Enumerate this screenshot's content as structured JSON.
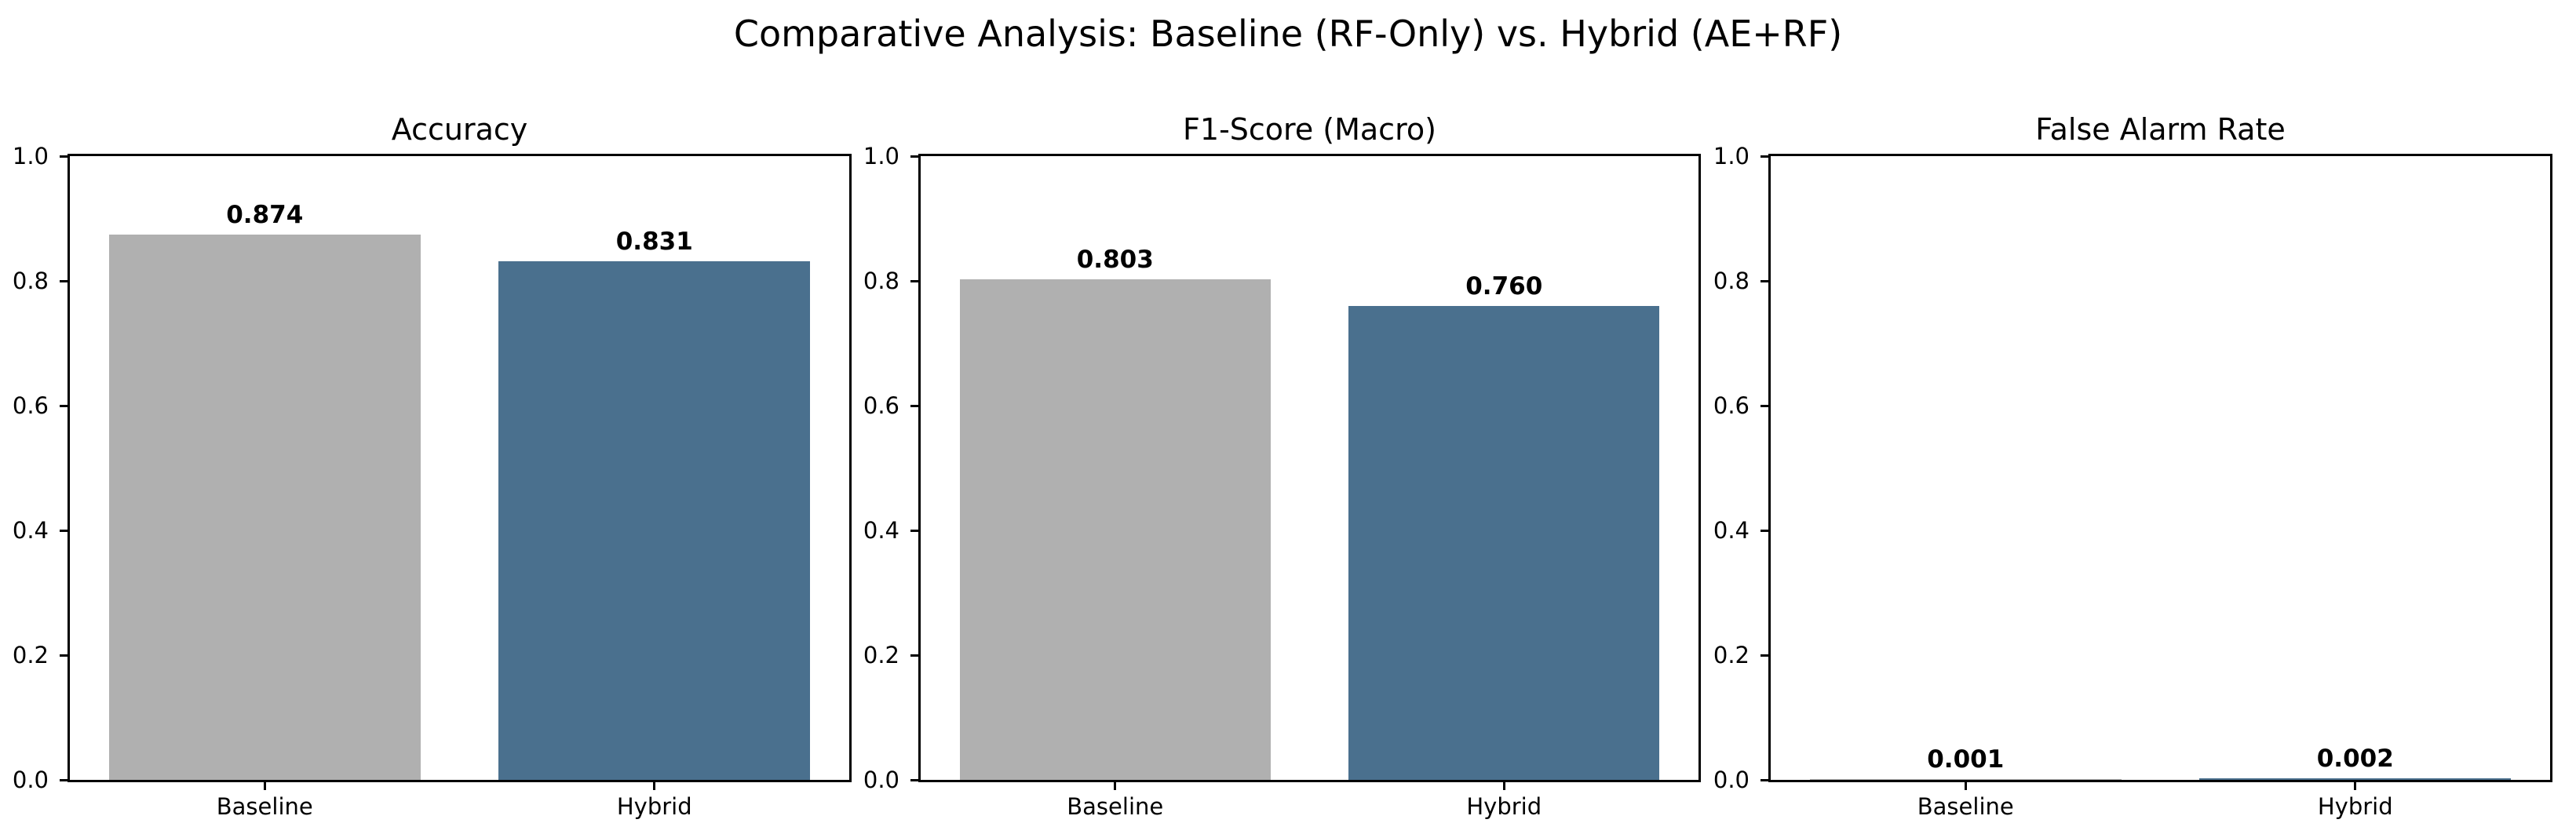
{
  "title": "Comparative Analysis: Baseline (RF-Only) vs. Hybrid (AE+RF)",
  "colors": {
    "baseline_bar": "#b0b0b0",
    "hybrid_bar": "#4a708e",
    "axis": "#000000",
    "background": "#ffffff",
    "text": "#000000"
  },
  "chart_data": [
    {
      "type": "bar",
      "title": "Accuracy",
      "categories": [
        "Baseline",
        "Hybrid"
      ],
      "values": [
        0.874,
        0.831
      ],
      "value_labels": [
        "0.874",
        "0.831"
      ],
      "bar_colors": [
        "#b0b0b0",
        "#4a708e"
      ],
      "ylim": [
        0.0,
        1.0
      ],
      "yticks": [
        0.0,
        0.2,
        0.4,
        0.6,
        0.8,
        1.0
      ],
      "ytick_labels": [
        "0.0",
        "0.2",
        "0.4",
        "0.6",
        "0.8",
        "1.0"
      ],
      "xlabel": "",
      "ylabel": "",
      "grid": false,
      "legend": null
    },
    {
      "type": "bar",
      "title": "F1-Score (Macro)",
      "categories": [
        "Baseline",
        "Hybrid"
      ],
      "values": [
        0.803,
        0.76
      ],
      "value_labels": [
        "0.803",
        "0.760"
      ],
      "bar_colors": [
        "#b0b0b0",
        "#4a708e"
      ],
      "ylim": [
        0.0,
        1.0
      ],
      "yticks": [
        0.0,
        0.2,
        0.4,
        0.6,
        0.8,
        1.0
      ],
      "ytick_labels": [
        "0.0",
        "0.2",
        "0.4",
        "0.6",
        "0.8",
        "1.0"
      ],
      "xlabel": "",
      "ylabel": "",
      "grid": false,
      "legend": null
    },
    {
      "type": "bar",
      "title": "False Alarm Rate",
      "categories": [
        "Baseline",
        "Hybrid"
      ],
      "values": [
        0.001,
        0.002
      ],
      "value_labels": [
        "0.001",
        "0.002"
      ],
      "bar_colors": [
        "#b0b0b0",
        "#4a708e"
      ],
      "ylim": [
        0.0,
        1.0
      ],
      "yticks": [
        0.0,
        0.2,
        0.4,
        0.6,
        0.8,
        1.0
      ],
      "ytick_labels": [
        "0.0",
        "0.2",
        "0.4",
        "0.6",
        "0.8",
        "1.0"
      ],
      "xlabel": "",
      "ylabel": "",
      "grid": false,
      "legend": null
    }
  ]
}
